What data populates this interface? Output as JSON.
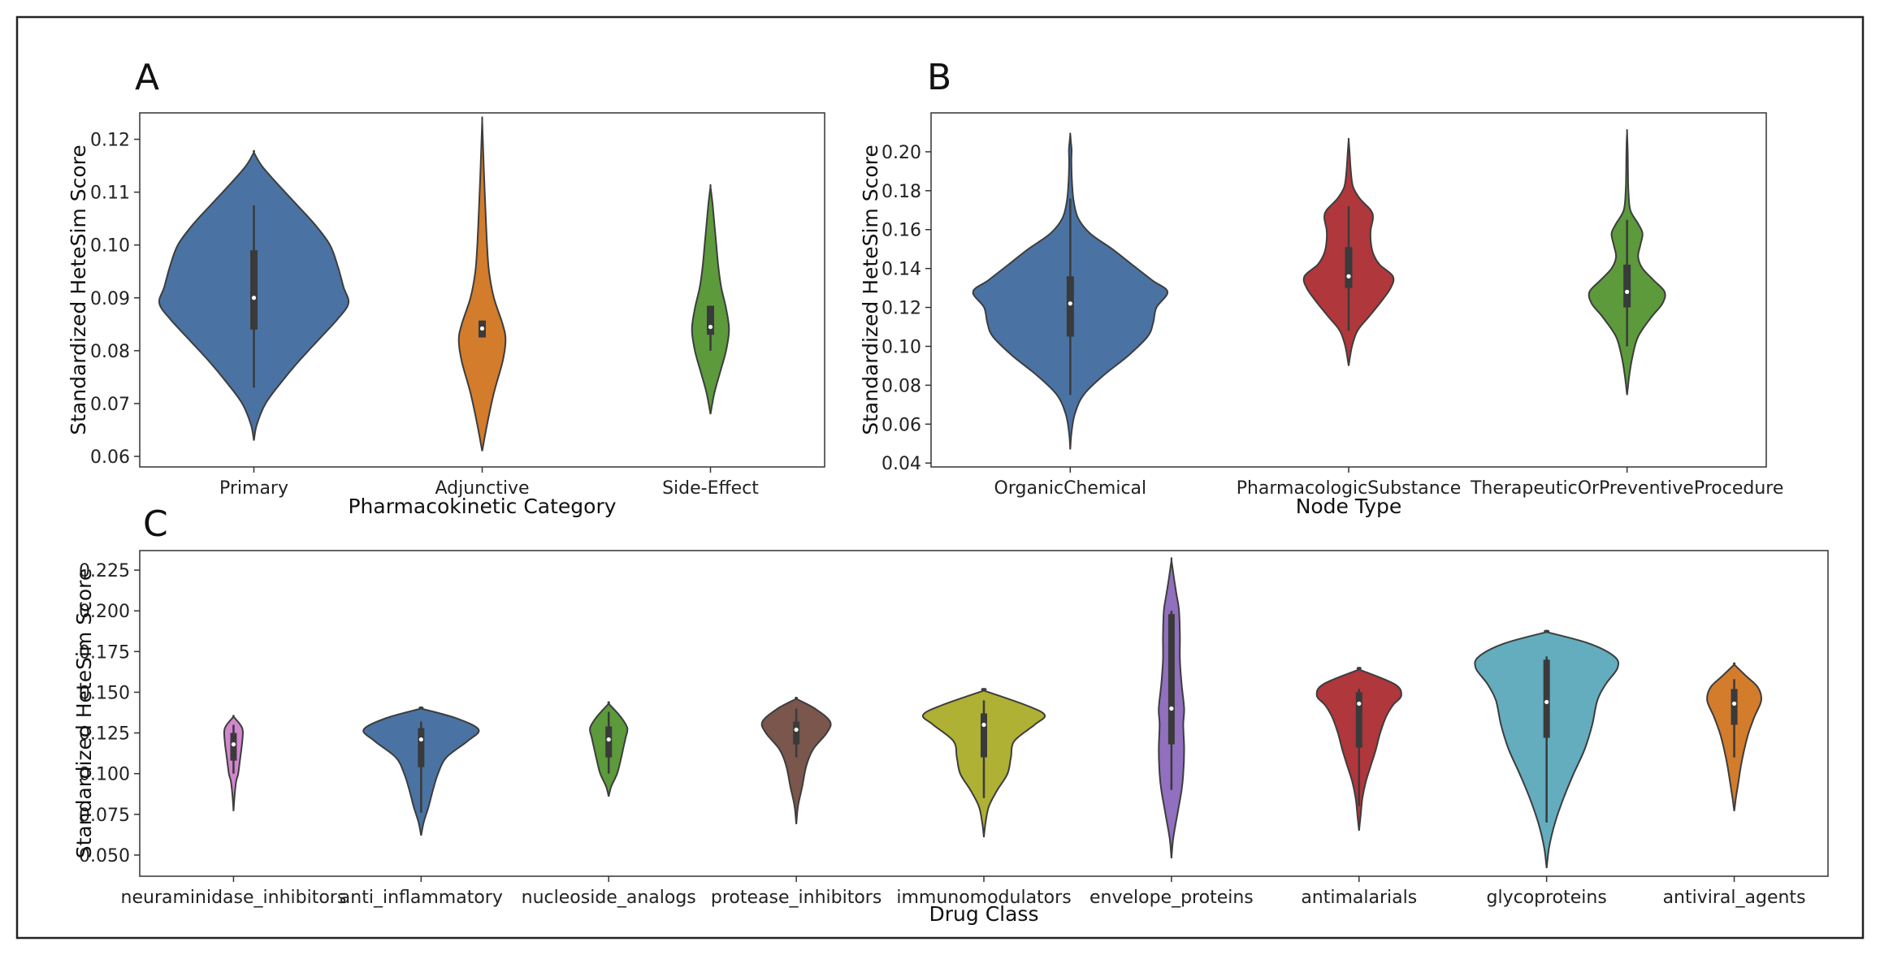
{
  "colors": {
    "blue": "#4a73a4",
    "orange": "#d27c2c",
    "green": "#5c9a3c",
    "red": "#b0373c",
    "purple": "#9170bf",
    "pink": "#d386cf",
    "brown": "#7a564c",
    "olive": "#aeb134",
    "cyan": "#63adbf",
    "box": "#3a3a3a"
  },
  "chart_data": [
    {
      "type": "violin",
      "panel": "A",
      "xlabel": "Pharmacokinetic Category",
      "ylabel": "Standardized HeteSim Score",
      "ylim": [
        0.058,
        0.125
      ],
      "yticks": [
        0.06,
        0.07,
        0.08,
        0.09,
        0.1,
        0.11,
        0.12
      ],
      "ytick_labels": [
        "0.06",
        "0.07",
        "0.08",
        "0.09",
        "0.10",
        "0.11",
        "0.12"
      ],
      "categories": [
        "Primary",
        "Adjunctive",
        "Side-Effect"
      ],
      "violins": [
        {
          "category": "Primary",
          "color": "blue",
          "profile": [
            [
              0.063,
              0.0
            ],
            [
              0.066,
              0.03
            ],
            [
              0.07,
              0.12
            ],
            [
              0.074,
              0.28
            ],
            [
              0.078,
              0.46
            ],
            [
              0.082,
              0.66
            ],
            [
              0.086,
              0.86
            ],
            [
              0.089,
              0.97
            ],
            [
              0.092,
              0.92
            ],
            [
              0.096,
              0.86
            ],
            [
              0.1,
              0.78
            ],
            [
              0.104,
              0.62
            ],
            [
              0.108,
              0.42
            ],
            [
              0.112,
              0.22
            ],
            [
              0.115,
              0.08
            ],
            [
              0.1175,
              0.0
            ]
          ],
          "q1": 0.084,
          "median": 0.09,
          "q3": 0.099,
          "wlow": 0.073,
          "whigh": 0.1075
        },
        {
          "category": "Adjunctive",
          "color": "orange",
          "profile": [
            [
              0.061,
              0.0
            ],
            [
              0.066,
              0.05
            ],
            [
              0.072,
              0.12
            ],
            [
              0.078,
              0.21
            ],
            [
              0.082,
              0.24
            ],
            [
              0.085,
              0.21
            ],
            [
              0.09,
              0.12
            ],
            [
              0.095,
              0.07
            ],
            [
              0.1,
              0.05
            ],
            [
              0.106,
              0.035
            ],
            [
              0.112,
              0.022
            ],
            [
              0.118,
              0.01
            ],
            [
              0.1235,
              0.0
            ]
          ],
          "q1": 0.0825,
          "median": 0.0842,
          "q3": 0.0857,
          "wlow": 0.0825,
          "whigh": 0.0857
        },
        {
          "category": "Side-Effect",
          "color": "green",
          "profile": [
            [
              0.068,
              0.0
            ],
            [
              0.072,
              0.04
            ],
            [
              0.076,
              0.1
            ],
            [
              0.08,
              0.16
            ],
            [
              0.084,
              0.19
            ],
            [
              0.088,
              0.16
            ],
            [
              0.092,
              0.11
            ],
            [
              0.096,
              0.08
            ],
            [
              0.1,
              0.06
            ],
            [
              0.104,
              0.04
            ],
            [
              0.108,
              0.02
            ],
            [
              0.111,
              0.0
            ]
          ],
          "q1": 0.083,
          "median": 0.0845,
          "q3": 0.0885,
          "wlow": 0.08,
          "whigh": 0.0885
        }
      ]
    },
    {
      "type": "violin",
      "panel": "B",
      "xlabel": "Node Type",
      "ylabel": "Standardized HeteSim Score",
      "ylim": [
        0.038,
        0.22
      ],
      "yticks": [
        0.04,
        0.06,
        0.08,
        0.1,
        0.12,
        0.14,
        0.16,
        0.18,
        0.2
      ],
      "ytick_labels": [
        "0.04",
        "0.06",
        "0.08",
        "0.10",
        "0.12",
        "0.14",
        "0.16",
        "0.18",
        "0.20"
      ],
      "categories": [
        "OrganicChemical",
        "PharmacologicSubstance",
        "TherapeuticOrPreventiveProcedure"
      ],
      "violins": [
        {
          "category": "OrganicChemical",
          "color": "blue",
          "profile": [
            [
              0.047,
              0.0
            ],
            [
              0.055,
              0.01
            ],
            [
              0.065,
              0.04
            ],
            [
              0.075,
              0.12
            ],
            [
              0.085,
              0.3
            ],
            [
              0.095,
              0.52
            ],
            [
              0.105,
              0.7
            ],
            [
              0.112,
              0.75
            ],
            [
              0.12,
              0.78
            ],
            [
              0.128,
              0.88
            ],
            [
              0.134,
              0.74
            ],
            [
              0.142,
              0.56
            ],
            [
              0.15,
              0.38
            ],
            [
              0.158,
              0.18
            ],
            [
              0.166,
              0.07
            ],
            [
              0.175,
              0.03
            ],
            [
              0.185,
              0.015
            ],
            [
              0.195,
              0.01
            ],
            [
              0.201,
              0.012
            ],
            [
              0.205,
              0.006
            ],
            [
              0.209,
              0.0
            ]
          ],
          "q1": 0.105,
          "median": 0.122,
          "q3": 0.136,
          "wlow": 0.075,
          "whigh": 0.176
        },
        {
          "category": "PharmacologicSubstance",
          "color": "red",
          "profile": [
            [
              0.09,
              0.0
            ],
            [
              0.1,
              0.03
            ],
            [
              0.108,
              0.08
            ],
            [
              0.115,
              0.18
            ],
            [
              0.122,
              0.28
            ],
            [
              0.13,
              0.38
            ],
            [
              0.136,
              0.4
            ],
            [
              0.142,
              0.28
            ],
            [
              0.148,
              0.22
            ],
            [
              0.154,
              0.2
            ],
            [
              0.16,
              0.2
            ],
            [
              0.166,
              0.22
            ],
            [
              0.17,
              0.2
            ],
            [
              0.176,
              0.1
            ],
            [
              0.182,
              0.04
            ],
            [
              0.19,
              0.02
            ],
            [
              0.2,
              0.008
            ],
            [
              0.206,
              0.0
            ]
          ],
          "q1": 0.13,
          "median": 0.136,
          "q3": 0.151,
          "wlow": 0.108,
          "whigh": 0.172
        },
        {
          "category": "TherapeuticOrPreventiveProcedure",
          "color": "green",
          "profile": [
            [
              0.075,
              0.0
            ],
            [
              0.085,
              0.02
            ],
            [
              0.095,
              0.05
            ],
            [
              0.105,
              0.1
            ],
            [
              0.115,
              0.22
            ],
            [
              0.122,
              0.32
            ],
            [
              0.128,
              0.34
            ],
            [
              0.134,
              0.24
            ],
            [
              0.14,
              0.14
            ],
            [
              0.146,
              0.1
            ],
            [
              0.152,
              0.12
            ],
            [
              0.158,
              0.14
            ],
            [
              0.163,
              0.1
            ],
            [
              0.17,
              0.03
            ],
            [
              0.18,
              0.012
            ],
            [
              0.19,
              0.008
            ],
            [
              0.2,
              0.006
            ],
            [
              0.21,
              0.0
            ]
          ],
          "q1": 0.12,
          "median": 0.128,
          "q3": 0.142,
          "wlow": 0.1,
          "whigh": 0.165
        }
      ]
    },
    {
      "type": "violin",
      "panel": "C",
      "xlabel": "Drug Class",
      "ylabel": "Standardized HeteSim Score",
      "ylim": [
        0.037,
        0.237
      ],
      "yticks": [
        0.05,
        0.075,
        0.1,
        0.125,
        0.15,
        0.175,
        0.2,
        0.225
      ],
      "ytick_labels": [
        "0.050",
        "0.075",
        "0.100",
        "0.125",
        "0.150",
        "0.175",
        "0.200",
        "0.225"
      ],
      "categories": [
        "neuraminidase_inhibitors",
        "anti_inflammatory",
        "nucleoside_analogs",
        "protease_inhibitors",
        "immunomodulators",
        "envelope_proteins",
        "antimalarials",
        "glycoproteins",
        "antiviral_agents"
      ],
      "violins": [
        {
          "category": "neuraminidase_inhibitors",
          "color": "pink",
          "profile": [
            [
              0.077,
              0.0
            ],
            [
              0.085,
              0.01
            ],
            [
              0.095,
              0.03
            ],
            [
              0.1,
              0.055
            ],
            [
              0.11,
              0.08
            ],
            [
              0.118,
              0.1
            ],
            [
              0.126,
              0.11
            ],
            [
              0.13,
              0.08
            ],
            [
              0.135,
              0.0
            ]
          ],
          "q1": 0.108,
          "median": 0.118,
          "q3": 0.125,
          "wlow": 0.1,
          "whigh": 0.13
        },
        {
          "category": "anti_inflammatory",
          "color": "blue",
          "profile": [
            [
              0.062,
              0.0
            ],
            [
              0.07,
              0.03
            ],
            [
              0.08,
              0.09
            ],
            [
              0.09,
              0.14
            ],
            [
              0.1,
              0.2
            ],
            [
              0.11,
              0.3
            ],
            [
              0.12,
              0.55
            ],
            [
              0.127,
              0.68
            ],
            [
              0.134,
              0.42
            ],
            [
              0.14,
              0.0
            ]
          ],
          "q1": 0.104,
          "median": 0.121,
          "q3": 0.128,
          "wlow": 0.076,
          "whigh": 0.132
        },
        {
          "category": "nucleoside_analogs",
          "color": "green",
          "profile": [
            [
              0.086,
              0.0
            ],
            [
              0.092,
              0.03
            ],
            [
              0.1,
              0.1
            ],
            [
              0.108,
              0.14
            ],
            [
              0.115,
              0.17
            ],
            [
              0.122,
              0.2
            ],
            [
              0.128,
              0.22
            ],
            [
              0.135,
              0.14
            ],
            [
              0.143,
              0.0
            ]
          ],
          "q1": 0.11,
          "median": 0.121,
          "q3": 0.129,
          "wlow": 0.1,
          "whigh": 0.138
        },
        {
          "category": "protease_inhibitors",
          "color": "brown",
          "profile": [
            [
              0.069,
              0.0
            ],
            [
              0.08,
              0.02
            ],
            [
              0.092,
              0.07
            ],
            [
              0.105,
              0.12
            ],
            [
              0.115,
              0.2
            ],
            [
              0.125,
              0.36
            ],
            [
              0.132,
              0.4
            ],
            [
              0.14,
              0.22
            ],
            [
              0.146,
              0.0
            ]
          ],
          "q1": 0.118,
          "median": 0.127,
          "q3": 0.132,
          "wlow": 0.11,
          "whigh": 0.14
        },
        {
          "category": "immunomodulators",
          "color": "olive",
          "profile": [
            [
              0.061,
              0.0
            ],
            [
              0.07,
              0.02
            ],
            [
              0.08,
              0.06
            ],
            [
              0.09,
              0.16
            ],
            [
              0.1,
              0.28
            ],
            [
              0.11,
              0.32
            ],
            [
              0.12,
              0.36
            ],
            [
              0.13,
              0.6
            ],
            [
              0.136,
              0.72
            ],
            [
              0.142,
              0.5
            ],
            [
              0.151,
              0.0
            ]
          ],
          "q1": 0.11,
          "median": 0.13,
          "q3": 0.137,
          "wlow": 0.085,
          "whigh": 0.145
        },
        {
          "category": "envelope_proteins",
          "color": "purple",
          "profile": [
            [
              0.048,
              0.0
            ],
            [
              0.06,
              0.02
            ],
            [
              0.075,
              0.07
            ],
            [
              0.09,
              0.12
            ],
            [
              0.1,
              0.14
            ],
            [
              0.115,
              0.15
            ],
            [
              0.13,
              0.14
            ],
            [
              0.14,
              0.15
            ],
            [
              0.155,
              0.12
            ],
            [
              0.17,
              0.1
            ],
            [
              0.185,
              0.1
            ],
            [
              0.2,
              0.09
            ],
            [
              0.21,
              0.06
            ],
            [
              0.22,
              0.03
            ],
            [
              0.231,
              0.0
            ]
          ],
          "q1": 0.118,
          "median": 0.14,
          "q3": 0.198,
          "wlow": 0.09,
          "whigh": 0.2
        },
        {
          "category": "antimalarials",
          "color": "red",
          "profile": [
            [
              0.065,
              0.0
            ],
            [
              0.075,
              0.02
            ],
            [
              0.085,
              0.04
            ],
            [
              0.095,
              0.08
            ],
            [
              0.105,
              0.14
            ],
            [
              0.115,
              0.2
            ],
            [
              0.125,
              0.25
            ],
            [
              0.135,
              0.32
            ],
            [
              0.142,
              0.4
            ],
            [
              0.148,
              0.5
            ],
            [
              0.155,
              0.42
            ],
            [
              0.164,
              0.0
            ]
          ],
          "q1": 0.116,
          "median": 0.143,
          "q3": 0.15,
          "wlow": 0.08,
          "whigh": 0.152
        },
        {
          "category": "glycoproteins",
          "color": "cyan",
          "profile": [
            [
              0.042,
              0.0
            ],
            [
              0.055,
              0.03
            ],
            [
              0.07,
              0.1
            ],
            [
              0.085,
              0.2
            ],
            [
              0.1,
              0.32
            ],
            [
              0.115,
              0.45
            ],
            [
              0.13,
              0.54
            ],
            [
              0.145,
              0.6
            ],
            [
              0.155,
              0.7
            ],
            [
              0.165,
              0.84
            ],
            [
              0.172,
              0.8
            ],
            [
              0.18,
              0.5
            ],
            [
              0.187,
              0.0
            ]
          ],
          "q1": 0.122,
          "median": 0.144,
          "q3": 0.17,
          "wlow": 0.07,
          "whigh": 0.172
        },
        {
          "category": "antiviral_agents",
          "color": "orange",
          "profile": [
            [
              0.077,
              0.0
            ],
            [
              0.085,
              0.02
            ],
            [
              0.095,
              0.05
            ],
            [
              0.105,
              0.08
            ],
            [
              0.115,
              0.12
            ],
            [
              0.125,
              0.17
            ],
            [
              0.135,
              0.24
            ],
            [
              0.145,
              0.32
            ],
            [
              0.153,
              0.28
            ],
            [
              0.16,
              0.14
            ],
            [
              0.167,
              0.0
            ]
          ],
          "q1": 0.13,
          "median": 0.143,
          "q3": 0.152,
          "wlow": 0.11,
          "whigh": 0.158
        }
      ]
    }
  ]
}
